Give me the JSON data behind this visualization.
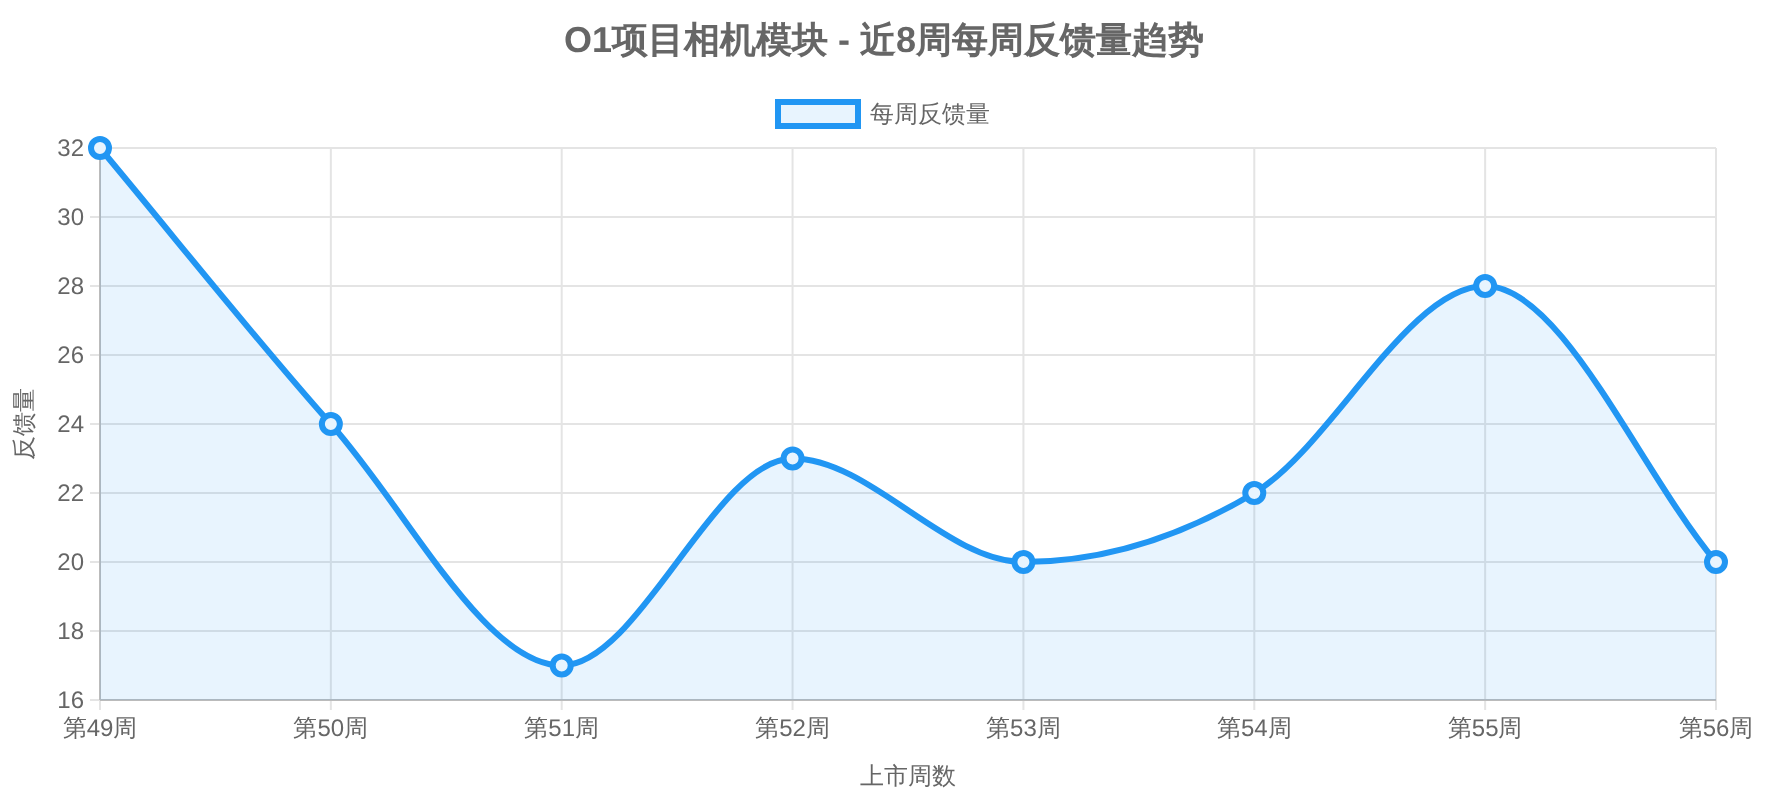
{
  "chart_data": {
    "type": "area",
    "title": "O1项目相机模块 - 近8周每周反馈量趋势",
    "xlabel": "上市周数",
    "ylabel": "反馈量",
    "categories": [
      "第49周",
      "第50周",
      "第51周",
      "第52周",
      "第53周",
      "第54周",
      "第55周",
      "第56周"
    ],
    "series": [
      {
        "name": "每周反馈量",
        "color": "#2196f3",
        "values": [
          32,
          24,
          17,
          23,
          20,
          22,
          28,
          20
        ]
      }
    ],
    "ylim": [
      16,
      32
    ],
    "yticks": [
      16,
      18,
      20,
      22,
      24,
      26,
      28,
      30,
      32
    ],
    "grid": true,
    "legend": "top",
    "marker": "circle",
    "line_style": "solid"
  }
}
